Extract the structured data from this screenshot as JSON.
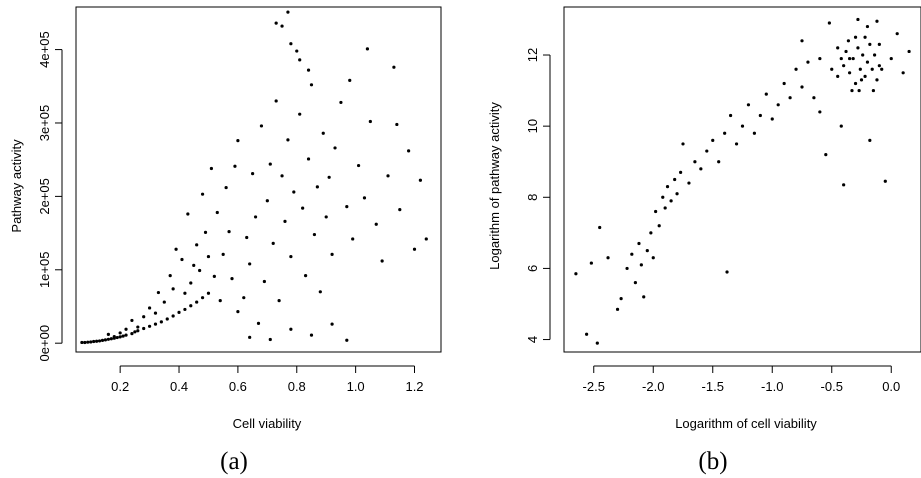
{
  "chart_data": [
    {
      "type": "scatter",
      "panel_label": "(a)",
      "xlabel": "Cell viability",
      "ylabel": "Pathway activity",
      "xlim": [
        0.05,
        1.29
      ],
      "ylim": [
        -12000,
        458000
      ],
      "xticks": [
        0.2,
        0.4,
        0.6,
        0.8,
        1.0,
        1.2
      ],
      "xtick_labels": [
        "0.2",
        "0.4",
        "0.6",
        "0.8",
        "1.0",
        "1.2"
      ],
      "yticks": [
        0,
        100000,
        200000,
        300000,
        400000
      ],
      "ytick_labels": [
        "0e+00",
        "1e+05",
        "2e+05",
        "3e+05",
        "4e+05"
      ],
      "grid": false,
      "point_color": "#000000",
      "points": [
        [
          0.07,
          1000
        ],
        [
          0.08,
          900
        ],
        [
          0.09,
          1400
        ],
        [
          0.1,
          1700
        ],
        [
          0.11,
          2300
        ],
        [
          0.12,
          2600
        ],
        [
          0.13,
          3100
        ],
        [
          0.14,
          3800
        ],
        [
          0.15,
          4500
        ],
        [
          0.16,
          5300
        ],
        [
          0.17,
          6000
        ],
        [
          0.18,
          6800
        ],
        [
          0.19,
          7700
        ],
        [
          0.2,
          8600
        ],
        [
          0.21,
          9700
        ],
        [
          0.22,
          11000
        ],
        [
          0.24,
          13000
        ],
        [
          0.25,
          15500
        ],
        [
          0.26,
          17000
        ],
        [
          0.28,
          20000
        ],
        [
          0.3,
          23000
        ],
        [
          0.32,
          26000
        ],
        [
          0.34,
          29000
        ],
        [
          0.36,
          33000
        ],
        [
          0.38,
          37000
        ],
        [
          0.4,
          42000
        ],
        [
          0.42,
          46000
        ],
        [
          0.44,
          51000
        ],
        [
          0.46,
          56000
        ],
        [
          0.48,
          62000
        ],
        [
          0.5,
          68000
        ],
        [
          0.16,
          12000
        ],
        [
          0.18,
          9000
        ],
        [
          0.2,
          14000
        ],
        [
          0.22,
          19000
        ],
        [
          0.24,
          31000
        ],
        [
          0.26,
          22000
        ],
        [
          0.28,
          36000
        ],
        [
          0.3,
          48000
        ],
        [
          0.32,
          41000
        ],
        [
          0.33,
          69000
        ],
        [
          0.35,
          56000
        ],
        [
          0.37,
          92000
        ],
        [
          0.38,
          74000
        ],
        [
          0.39,
          128000
        ],
        [
          0.41,
          114000
        ],
        [
          0.42,
          68000
        ],
        [
          0.43,
          176000
        ],
        [
          0.44,
          82000
        ],
        [
          0.45,
          106000
        ],
        [
          0.46,
          134000
        ],
        [
          0.47,
          99000
        ],
        [
          0.48,
          203000
        ],
        [
          0.49,
          151000
        ],
        [
          0.5,
          118000
        ],
        [
          0.51,
          238000
        ],
        [
          0.52,
          91000
        ],
        [
          0.53,
          178000
        ],
        [
          0.54,
          58000
        ],
        [
          0.55,
          121000
        ],
        [
          0.56,
          212000
        ],
        [
          0.57,
          152000
        ],
        [
          0.58,
          88000
        ],
        [
          0.59,
          241000
        ],
        [
          0.6,
          276000
        ],
        [
          0.6,
          43000
        ],
        [
          0.62,
          62000
        ],
        [
          0.63,
          144000
        ],
        [
          0.64,
          108000
        ],
        [
          0.65,
          231000
        ],
        [
          0.66,
          172000
        ],
        [
          0.67,
          27000
        ],
        [
          0.68,
          296000
        ],
        [
          0.69,
          84000
        ],
        [
          0.7,
          194000
        ],
        [
          0.71,
          244000
        ],
        [
          0.72,
          136000
        ],
        [
          0.73,
          330000
        ],
        [
          0.74,
          58000
        ],
        [
          0.75,
          228000
        ],
        [
          0.76,
          166000
        ],
        [
          0.77,
          277000
        ],
        [
          0.78,
          118000
        ],
        [
          0.79,
          206000
        ],
        [
          0.8,
          398000
        ],
        [
          0.81,
          312000
        ],
        [
          0.82,
          184000
        ],
        [
          0.83,
          92000
        ],
        [
          0.84,
          251000
        ],
        [
          0.85,
          352000
        ],
        [
          0.86,
          148000
        ],
        [
          0.87,
          213000
        ],
        [
          0.88,
          70000
        ],
        [
          0.89,
          286000
        ],
        [
          0.9,
          172000
        ],
        [
          0.91,
          226000
        ],
        [
          0.92,
          121000
        ],
        [
          0.93,
          266000
        ],
        [
          0.95,
          328000
        ],
        [
          0.97,
          186000
        ],
        [
          0.99,
          142000
        ],
        [
          1.01,
          242000
        ],
        [
          1.03,
          198000
        ],
        [
          1.05,
          302000
        ],
        [
          1.07,
          162000
        ],
        [
          1.09,
          112000
        ],
        [
          1.11,
          228000
        ],
        [
          1.13,
          376000
        ],
        [
          1.15,
          182000
        ],
        [
          1.18,
          262000
        ],
        [
          1.2,
          128000
        ],
        [
          1.22,
          222000
        ],
        [
          1.24,
          142000
        ],
        [
          0.77,
          451000
        ],
        [
          0.75,
          432000
        ],
        [
          0.73,
          436000
        ],
        [
          0.78,
          408000
        ],
        [
          0.81,
          386000
        ],
        [
          0.84,
          372000
        ],
        [
          1.04,
          401000
        ],
        [
          1.14,
          298000
        ],
        [
          0.98,
          358000
        ],
        [
          0.64,
          8000
        ],
        [
          0.71,
          5000
        ],
        [
          0.78,
          19000
        ],
        [
          0.85,
          11000
        ],
        [
          0.92,
          26000
        ],
        [
          0.97,
          4000
        ]
      ]
    },
    {
      "type": "scatter",
      "panel_label": "(b)",
      "xlabel": "Logarithm of cell viability",
      "ylabel": "Logarithm of pathway activity",
      "xlim": [
        -2.75,
        0.25
      ],
      "ylim": [
        3.65,
        13.35
      ],
      "xticks": [
        -2.5,
        -2.0,
        -1.5,
        -1.0,
        -0.5,
        0.0
      ],
      "xtick_labels": [
        "-2.5",
        "-2.0",
        "-1.5",
        "-1.0",
        "-0.5",
        "0.0"
      ],
      "yticks": [
        4,
        6,
        8,
        10,
        12
      ],
      "ytick_labels": [
        "4",
        "6",
        "8",
        "10",
        "12"
      ],
      "grid": false,
      "point_color": "#000000",
      "points": [
        [
          -2.65,
          5.85
        ],
        [
          -2.56,
          4.15
        ],
        [
          -2.47,
          3.9
        ],
        [
          -2.52,
          6.15
        ],
        [
          -2.45,
          7.15
        ],
        [
          -2.38,
          6.3
        ],
        [
          -2.3,
          4.85
        ],
        [
          -2.27,
          5.15
        ],
        [
          -2.22,
          6.0
        ],
        [
          -2.18,
          6.4
        ],
        [
          -2.15,
          5.6
        ],
        [
          -2.12,
          6.7
        ],
        [
          -2.1,
          6.1
        ],
        [
          -2.08,
          5.2
        ],
        [
          -2.05,
          6.5
        ],
        [
          -2.02,
          7.0
        ],
        [
          -2.0,
          6.3
        ],
        [
          -1.98,
          7.6
        ],
        [
          -1.95,
          7.2
        ],
        [
          -1.92,
          8.0
        ],
        [
          -1.9,
          7.7
        ],
        [
          -1.88,
          8.3
        ],
        [
          -1.85,
          7.9
        ],
        [
          -1.82,
          8.5
        ],
        [
          -1.8,
          8.1
        ],
        [
          -1.77,
          8.7
        ],
        [
          -1.75,
          9.5
        ],
        [
          -1.7,
          8.4
        ],
        [
          -1.65,
          9.0
        ],
        [
          -1.6,
          8.8
        ],
        [
          -1.55,
          9.3
        ],
        [
          -1.5,
          9.6
        ],
        [
          -1.45,
          9.0
        ],
        [
          -1.4,
          9.8
        ],
        [
          -1.38,
          5.9
        ],
        [
          -1.35,
          10.3
        ],
        [
          -1.3,
          9.5
        ],
        [
          -1.25,
          10.0
        ],
        [
          -1.2,
          10.6
        ],
        [
          -1.15,
          9.8
        ],
        [
          -1.1,
          10.3
        ],
        [
          -1.05,
          10.9
        ],
        [
          -1.0,
          10.2
        ],
        [
          -0.95,
          10.6
        ],
        [
          -0.9,
          11.2
        ],
        [
          -0.85,
          10.8
        ],
        [
          -0.8,
          11.6
        ],
        [
          -0.75,
          11.1
        ],
        [
          -0.7,
          11.8
        ],
        [
          -0.65,
          10.8
        ],
        [
          -0.6,
          11.9
        ],
        [
          -0.55,
          9.2
        ],
        [
          -0.5,
          11.6
        ],
        [
          -0.45,
          12.2
        ],
        [
          -0.4,
          8.35
        ],
        [
          -0.35,
          11.9
        ],
        [
          -0.3,
          12.5
        ],
        [
          -0.25,
          11.3
        ],
        [
          -0.2,
          12.8
        ],
        [
          -0.15,
          11.0
        ],
        [
          -0.1,
          12.3
        ],
        [
          -0.05,
          8.45
        ],
        [
          0.0,
          11.9
        ],
        [
          0.05,
          12.6
        ],
        [
          0.1,
          11.5
        ],
        [
          0.15,
          12.1
        ],
        [
          -0.52,
          12.9
        ],
        [
          -0.28,
          13.0
        ],
        [
          -0.12,
          12.95
        ],
        [
          -0.6,
          10.4
        ],
        [
          -0.42,
          10.0
        ],
        [
          -0.18,
          9.6
        ],
        [
          -0.75,
          12.4
        ],
        [
          -0.33,
          11.0
        ],
        [
          -0.08,
          11.6
        ],
        [
          -0.45,
          11.4
        ],
        [
          -0.4,
          11.7
        ],
        [
          -0.38,
          12.1
        ],
        [
          -0.35,
          11.5
        ],
        [
          -0.32,
          11.9
        ],
        [
          -0.3,
          11.2
        ],
        [
          -0.28,
          12.2
        ],
        [
          -0.26,
          11.6
        ],
        [
          -0.24,
          12.0
        ],
        [
          -0.22,
          11.4
        ],
        [
          -0.2,
          11.8
        ],
        [
          -0.18,
          12.3
        ],
        [
          -0.16,
          11.6
        ],
        [
          -0.14,
          12.0
        ],
        [
          -0.12,
          11.3
        ],
        [
          -0.1,
          11.7
        ],
        [
          -0.36,
          12.4
        ],
        [
          -0.22,
          12.5
        ],
        [
          -0.42,
          11.9
        ],
        [
          -0.27,
          11.0
        ]
      ]
    }
  ]
}
